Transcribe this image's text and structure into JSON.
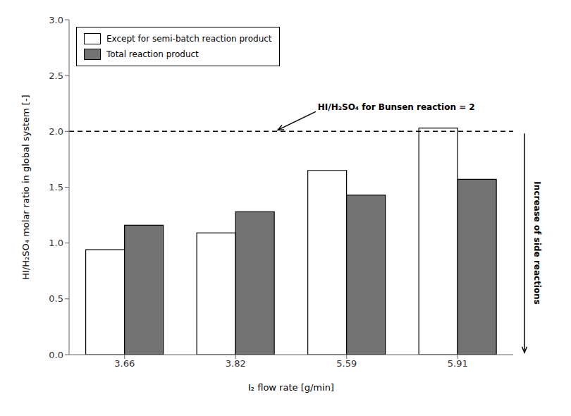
{
  "chart_data": {
    "type": "bar",
    "categories": [
      "3.66",
      "3.82",
      "5.59",
      "5.91"
    ],
    "series": [
      {
        "name": "Except for semi-batch reaction product",
        "color": "#ffffff",
        "values": [
          0.94,
          1.09,
          1.65,
          2.03
        ]
      },
      {
        "name": "Total reaction product",
        "color": "#737373",
        "values": [
          1.16,
          1.28,
          1.43,
          1.57
        ]
      }
    ],
    "xlabel": "I₂ flow rate [g/min]",
    "ylabel": "HI/H₂SO₄ molar ratio in global system [-]",
    "ylim": [
      0,
      3.0
    ],
    "yticks": [
      {
        "value": 0,
        "label": "0.0"
      },
      0.5,
      {
        "value": 1,
        "label": "1.0"
      },
      1.5,
      {
        "value": 2,
        "label": "2.0"
      },
      2.5,
      {
        "value": 3,
        "label": "3.0"
      }
    ],
    "annotations": [
      {
        "text": "HI/H₂SO₄ for Bunsen reaction = 2",
        "y": 2.0,
        "line_style": "dashed"
      },
      {
        "text": "Increase of side reactions"
      }
    ],
    "legend": "upper left",
    "grid": false
  }
}
